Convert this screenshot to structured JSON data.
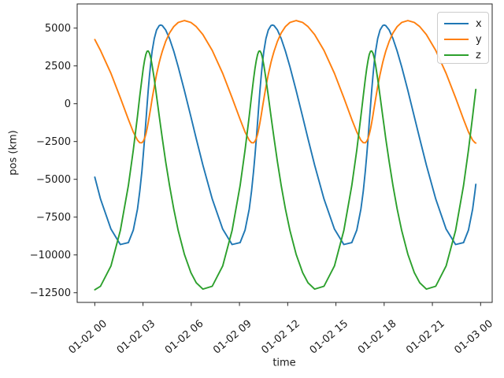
{
  "figure": {
    "background": "#ffffff",
    "frame_color": "#262626",
    "text_color": "#1a1a1a"
  },
  "chart_data": {
    "type": "line",
    "title": "",
    "xlabel": "time",
    "ylabel": "pos (km)",
    "grid": false,
    "legend_position": "upper right",
    "x_unit": "hours after 01-02 00",
    "xlim_hours": [
      -1.095,
      24.72
    ],
    "ylim": [
      -13139,
      6598
    ],
    "x_ticks": [
      {
        "t": 0,
        "label": "01-02 00"
      },
      {
        "t": 3,
        "label": "01-02 03"
      },
      {
        "t": 6,
        "label": "01-02 06"
      },
      {
        "t": 9,
        "label": "01-02 09"
      },
      {
        "t": 12,
        "label": "01-02 12"
      },
      {
        "t": 15,
        "label": "01-02 15"
      },
      {
        "t": 18,
        "label": "01-02 18"
      },
      {
        "t": 21,
        "label": "01-02 21"
      },
      {
        "t": 24,
        "label": "01-03 00"
      }
    ],
    "y_ticks": [
      {
        "v": 5000,
        "label": "5000"
      },
      {
        "v": 2500,
        "label": "2500"
      },
      {
        "v": 0,
        "label": "0"
      },
      {
        "v": -2500,
        "label": "−2500"
      },
      {
        "v": -5000,
        "label": "−5000"
      },
      {
        "v": -7500,
        "label": "−7500"
      },
      {
        "v": -10000,
        "label": "−10000"
      },
      {
        "v": -12500,
        "label": "−12500"
      }
    ],
    "t_hours": [
      0,
      0.356,
      1.006,
      1.591,
      2.088,
      2.398,
      2.656,
      2.801,
      2.93,
      3.017,
      3.098,
      3.175,
      3.25,
      3.325,
      3.402,
      3.483,
      3.57,
      3.699,
      3.844,
      4.01,
      4.102,
      4.199,
      4.412,
      4.649,
      4.909,
      5.192,
      5.572,
      5.977,
      6.312,
      6.725,
      7.306,
      7.956,
      8.541,
      9.038,
      9.348,
      9.606,
      9.751,
      9.88,
      9.967,
      10.048,
      10.125,
      10.2,
      10.275,
      10.352,
      10.433,
      10.52,
      10.649,
      10.794,
      10.96,
      11.052,
      11.149,
      11.362,
      11.599,
      11.859,
      12.142,
      12.522,
      12.927,
      13.262,
      13.675,
      14.256,
      14.906,
      15.491,
      15.988,
      16.298,
      16.556,
      16.701,
      16.83,
      16.917,
      16.998,
      17.075,
      17.15,
      17.225,
      17.302,
      17.383,
      17.47,
      17.599,
      17.744,
      17.91,
      18.002,
      18.099,
      18.312,
      18.549,
      18.809,
      19.092,
      19.472,
      19.877,
      20.212,
      20.625,
      21.206,
      21.856,
      22.441,
      22.938,
      23.248,
      23.506,
      23.651,
      23.7
    ],
    "series": [
      {
        "name": "x",
        "color": "#1f77b4",
        "values": [
          -4857,
          -6296,
          -8291,
          -9309,
          -9188,
          -8355,
          -6964,
          -5785,
          -4460,
          -3401,
          -2313,
          -1220,
          -147,
          882,
          1844,
          2718,
          3483,
          4306,
          4874,
          5164,
          5200,
          5164,
          4874,
          4306,
          3483,
          2438,
          882,
          -859,
          -2313,
          -4053,
          -6296,
          -8291,
          -9309,
          -9188,
          -8355,
          -6964,
          -5785,
          -4460,
          -3401,
          -2313,
          -1220,
          -147,
          882,
          1844,
          2718,
          3483,
          4306,
          4874,
          5164,
          5200,
          5164,
          4874,
          4306,
          3483,
          2438,
          882,
          -859,
          -2313,
          -4053,
          -6296,
          -8291,
          -9309,
          -9188,
          -8355,
          -6964,
          -5785,
          -4460,
          -3401,
          -2313,
          -1220,
          -147,
          882,
          1844,
          2718,
          3483,
          4306,
          4874,
          5164,
          5200,
          5164,
          4874,
          4306,
          3483,
          2438,
          882,
          -859,
          -2313,
          -4053,
          -6296,
          -8291,
          -9309,
          -9188,
          -8355,
          -6964,
          -5785,
          -5334
        ]
      },
      {
        "name": "y",
        "color": "#ff7f0e",
        "values": [
          4243,
          3526,
          2006,
          397,
          -1035,
          -1873,
          -2409,
          -2576,
          -2584,
          -2482,
          -2293,
          -2020,
          -1669,
          -1248,
          -767,
          -235,
          334,
          1130,
          1938,
          2727,
          3104,
          3465,
          4123,
          4674,
          5097,
          5374,
          5500,
          5374,
          5097,
          4571,
          3526,
          2006,
          397,
          -1035,
          -1873,
          -2409,
          -2576,
          -2584,
          -2482,
          -2293,
          -2020,
          -1669,
          -1248,
          -767,
          -235,
          334,
          1130,
          1938,
          2727,
          3104,
          3465,
          4123,
          4674,
          5097,
          5374,
          5500,
          5374,
          5097,
          4571,
          3526,
          2006,
          397,
          -1035,
          -1873,
          -2409,
          -2576,
          -2584,
          -2482,
          -2293,
          -2020,
          -1669,
          -1248,
          -767,
          -235,
          334,
          1130,
          1938,
          2727,
          3104,
          3465,
          4123,
          4674,
          5097,
          5374,
          5500,
          5374,
          5097,
          4571,
          3526,
          2006,
          397,
          -1035,
          -1873,
          -2409,
          -2576,
          -2597
        ]
      },
      {
        "name": "z",
        "color": "#2ca02c",
        "values": [
          -12299,
          -12071,
          -10729,
          -8388,
          -5418,
          -3057,
          -817,
          511,
          1642,
          2335,
          2876,
          3254,
          3461,
          3490,
          3343,
          3021,
          2533,
          1642,
          511,
          -817,
          -1537,
          -2287,
          -3841,
          -5418,
          -6954,
          -8388,
          -9951,
          -11169,
          -11844,
          -12261,
          -12071,
          -10729,
          -8388,
          -5418,
          -3057,
          -817,
          511,
          1642,
          2335,
          2876,
          3254,
          3461,
          3490,
          3343,
          3021,
          2533,
          1642,
          511,
          -817,
          -1537,
          -2287,
          -3841,
          -5418,
          -6954,
          -8388,
          -9951,
          -11169,
          -11844,
          -12261,
          -12071,
          -10729,
          -8388,
          -5418,
          -3057,
          -817,
          511,
          1642,
          2335,
          2876,
          3254,
          3461,
          3490,
          3343,
          3021,
          2533,
          1642,
          511,
          -817,
          -1537,
          -2287,
          -3841,
          -5418,
          -6954,
          -8388,
          -9951,
          -11169,
          -11844,
          -12261,
          -12071,
          -10729,
          -8388,
          -5418,
          -3057,
          -817,
          511,
          942
        ]
      }
    ]
  }
}
